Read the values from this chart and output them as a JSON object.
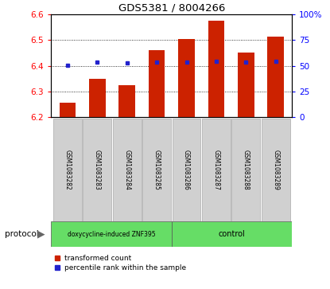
{
  "title": "GDS5381 / 8004266",
  "samples": [
    "GSM1083282",
    "GSM1083283",
    "GSM1083284",
    "GSM1083285",
    "GSM1083286",
    "GSM1083287",
    "GSM1083288",
    "GSM1083289"
  ],
  "transformed_counts": [
    6.255,
    6.35,
    6.325,
    6.46,
    6.505,
    6.575,
    6.45,
    6.515
  ],
  "percentile_values": [
    6.402,
    6.413,
    6.41,
    6.413,
    6.415,
    6.418,
    6.415,
    6.418
  ],
  "ylim_left": [
    6.2,
    6.6
  ],
  "ylim_right": [
    0,
    100
  ],
  "yticks_left": [
    6.2,
    6.3,
    6.4,
    6.5,
    6.6
  ],
  "yticks_right": [
    0,
    25,
    50,
    75,
    100
  ],
  "grid_lines": [
    6.3,
    6.4,
    6.5
  ],
  "bar_color": "#cc2200",
  "dot_color": "#2222cc",
  "group1_end": 4,
  "group1_label": "doxycycline-induced ZNF395",
  "group2_label": "control",
  "protocol_label": "protocol",
  "legend_bar": "transformed count",
  "legend_dot": "percentile rank within the sample",
  "bar_bottom": 6.2,
  "bar_width": 0.55,
  "xlim": [
    -0.55,
    7.55
  ]
}
